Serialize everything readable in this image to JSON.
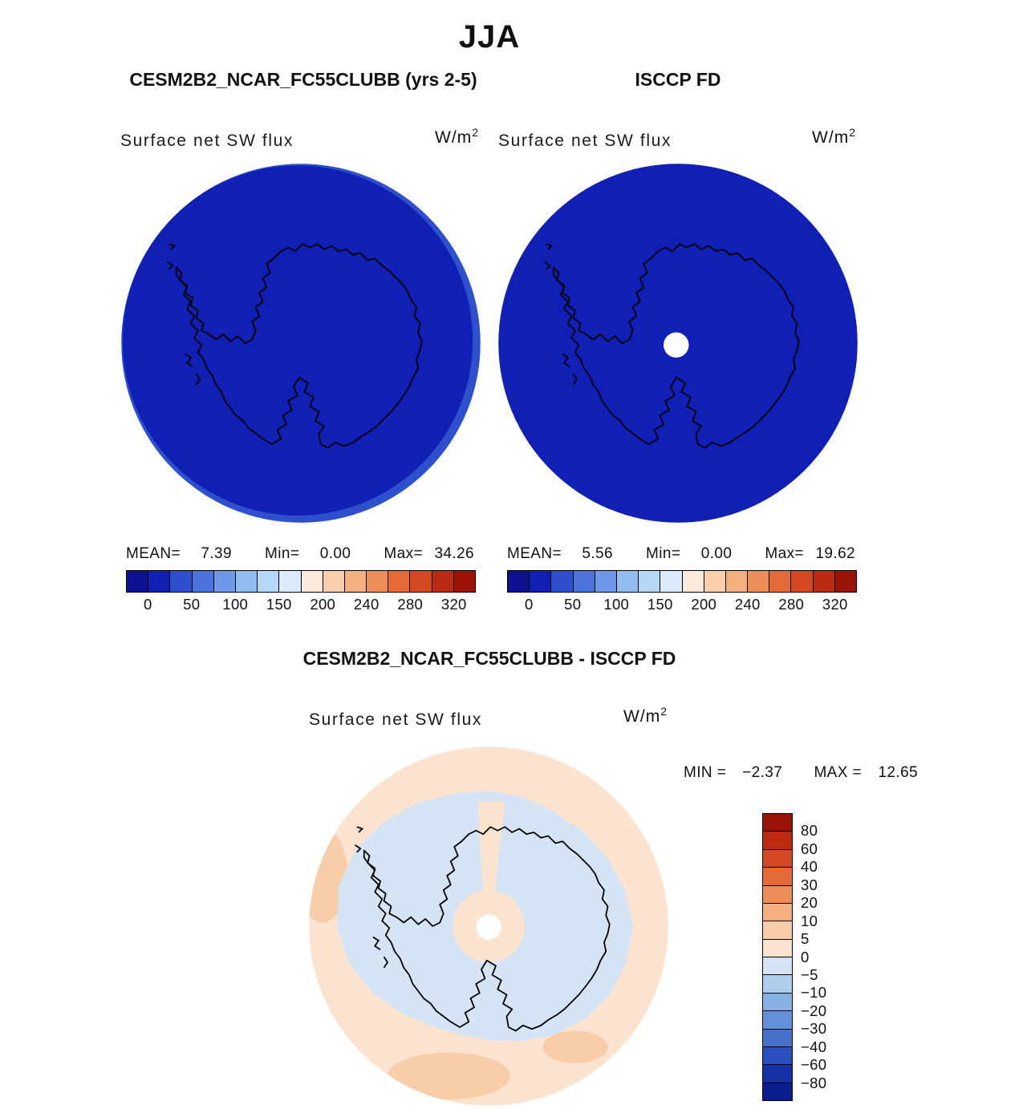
{
  "title": "JJA",
  "panels": {
    "model": {
      "header": "CESM2B2_NCAR_FC55CLUBB (yrs 2-5)",
      "field": "Surface net SW flux",
      "units_base": "W/m",
      "units_exp": "2",
      "stats": [
        {
          "label": "MEAN=",
          "value": "7.39"
        },
        {
          "label": "Min=",
          "value": "0.00"
        },
        {
          "label": "Max=",
          "value": "34.26"
        }
      ]
    },
    "obs": {
      "header": "ISCCP FD",
      "field": "Surface net SW flux",
      "units_base": "W/m",
      "units_exp": "2",
      "stats": [
        {
          "label": "MEAN=",
          "value": "5.56"
        },
        {
          "label": "Min=",
          "value": "0.00"
        },
        {
          "label": "Max=",
          "value": "19.62"
        }
      ]
    },
    "diff": {
      "header": "CESM2B2_NCAR_FC55CLUBB - ISCCP FD",
      "field": "Surface net SW flux",
      "units_base": "W/m",
      "units_exp": "2",
      "stats": [
        {
          "label": "MIN =",
          "value": "−2.37"
        },
        {
          "label": "MAX =",
          "value": "12.65"
        }
      ]
    }
  },
  "chart_data": [
    {
      "id": "model-map",
      "type": "heatmap",
      "projection": "south-polar-stereographic",
      "region": "Antarctica / southern polar cap",
      "title": "Surface net SW flux — CESM2B2_NCAR_FC55CLUBB (yrs 2-5), JJA",
      "units": "W/m²",
      "stats": {
        "mean": 7.39,
        "min": 0.0,
        "max": 34.26
      },
      "tick_labels": [
        "0",
        "50",
        "100",
        "150",
        "200",
        "240",
        "280",
        "320"
      ],
      "n_cells": 16,
      "label_cell_boundaries": [
        1,
        3,
        5,
        7,
        9,
        11,
        13,
        15
      ],
      "palette": [
        "#0D1291",
        "#1020B4",
        "#2E50CC",
        "#4A73DC",
        "#6C99E8",
        "#90BCF0",
        "#B6D7F7",
        "#DCEBFB",
        "#FBE9D9",
        "#F8CEAB",
        "#F4AF81",
        "#EE8F5A",
        "#E46B39",
        "#D34823",
        "#B92B12",
        "#991307"
      ],
      "map_fill": "#1020B4",
      "map_secondary": "#2E50CC",
      "pole_hole": false
    },
    {
      "id": "obs-map",
      "type": "heatmap",
      "projection": "south-polar-stereographic",
      "region": "Antarctica / southern polar cap",
      "title": "Surface net SW flux — ISCCP FD, JJA",
      "units": "W/m²",
      "stats": {
        "mean": 5.56,
        "min": 0.0,
        "max": 19.62
      },
      "tick_labels": [
        "0",
        "50",
        "100",
        "150",
        "200",
        "240",
        "280",
        "320"
      ],
      "n_cells": 16,
      "label_cell_boundaries": [
        1,
        3,
        5,
        7,
        9,
        11,
        13,
        15
      ],
      "palette": [
        "#0D1291",
        "#1020B4",
        "#2E50CC",
        "#4A73DC",
        "#6C99E8",
        "#90BCF0",
        "#B6D7F7",
        "#DCEBFB",
        "#FBE9D9",
        "#F8CEAB",
        "#F4AF81",
        "#EE8F5A",
        "#E46B39",
        "#D34823",
        "#B92B12",
        "#991307"
      ],
      "map_fill": "#1020B4",
      "map_secondary": null,
      "pole_hole": true
    },
    {
      "id": "diff-map",
      "type": "heatmap",
      "projection": "south-polar-stereographic",
      "region": "Antarctica / southern polar cap",
      "title": "Surface net SW flux — CESM2B2_NCAR_FC55CLUBB minus ISCCP FD, JJA",
      "units": "W/m²",
      "stats": {
        "min": -2.37,
        "max": 12.65
      },
      "tick_labels": [
        "80",
        "60",
        "40",
        "30",
        "20",
        "10",
        "5",
        "0",
        "−5",
        "−10",
        "−20",
        "−30",
        "−40",
        "−60",
        "−80"
      ],
      "n_cells": 16,
      "palette": [
        "#991306",
        "#BB2A11",
        "#D44822",
        "#E46B38",
        "#EE8F59",
        "#F4AF80",
        "#F8CEAA",
        "#FBE3CF",
        "#D5E4F4",
        "#AECDED",
        "#88B2E3",
        "#6391D9",
        "#456FCB",
        "#2C4FBE",
        "#1631A8",
        "#0C1D8F"
      ],
      "ring_fill": "#FBE3CF",
      "interior_fill": "#D5E4F4",
      "patch_fill": "#F8CEAA",
      "pole_hole": true
    }
  ]
}
